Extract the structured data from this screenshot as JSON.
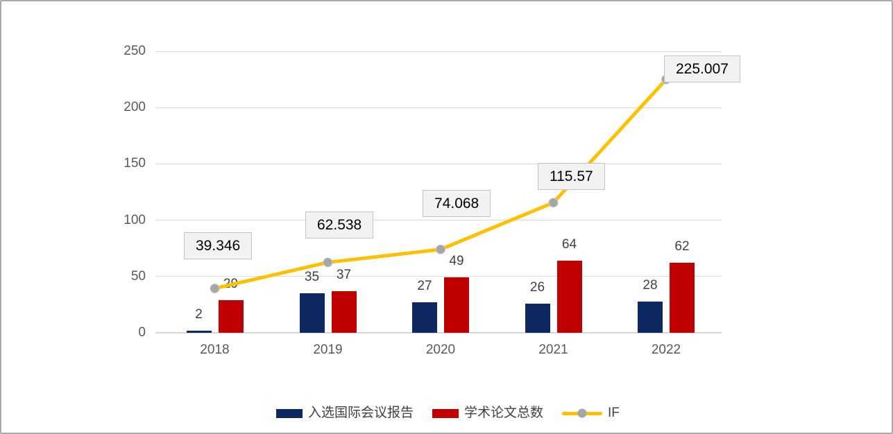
{
  "chart_data": {
    "type": "bar+line",
    "title": "",
    "categories": [
      "2018",
      "2019",
      "2020",
      "2021",
      "2022"
    ],
    "series": [
      {
        "name": "入选国际会议报告",
        "type": "bar",
        "color": "#0E2862",
        "values": [
          2,
          35,
          27,
          26,
          28
        ],
        "data_labels": [
          "2",
          "35",
          "27",
          "26",
          "28"
        ]
      },
      {
        "name": "学术论文总数",
        "type": "bar",
        "color": "#C00000",
        "values": [
          29,
          37,
          49,
          64,
          62
        ],
        "data_labels": [
          "29",
          "37",
          "49",
          "64",
          "62"
        ]
      },
      {
        "name": "IF",
        "type": "line",
        "color": "#FFC000",
        "marker_color": "#A6A6A6",
        "values": [
          39.346,
          62.538,
          74.068,
          115.57,
          225.007
        ],
        "data_labels": [
          "39.346",
          "62.538",
          "74.068",
          "115.57",
          "225.007"
        ],
        "label_style": "boxed"
      }
    ],
    "ylim": [
      0,
      250
    ],
    "yticks": [
      "0",
      "50",
      "100",
      "150",
      "200",
      "250"
    ],
    "grid": true,
    "legend_position": "bottom"
  },
  "colors": {
    "background": "#FFFFFF",
    "frame_border": "#A9A9A9",
    "gridline": "#D9D9D9",
    "axis_text": "#595959",
    "bar_label_text": "#404040",
    "legend_text": "#404040",
    "if_label_bg": "#F2F2F2",
    "if_label_border": "#C3C3C3",
    "if_label_text": "#000000"
  }
}
